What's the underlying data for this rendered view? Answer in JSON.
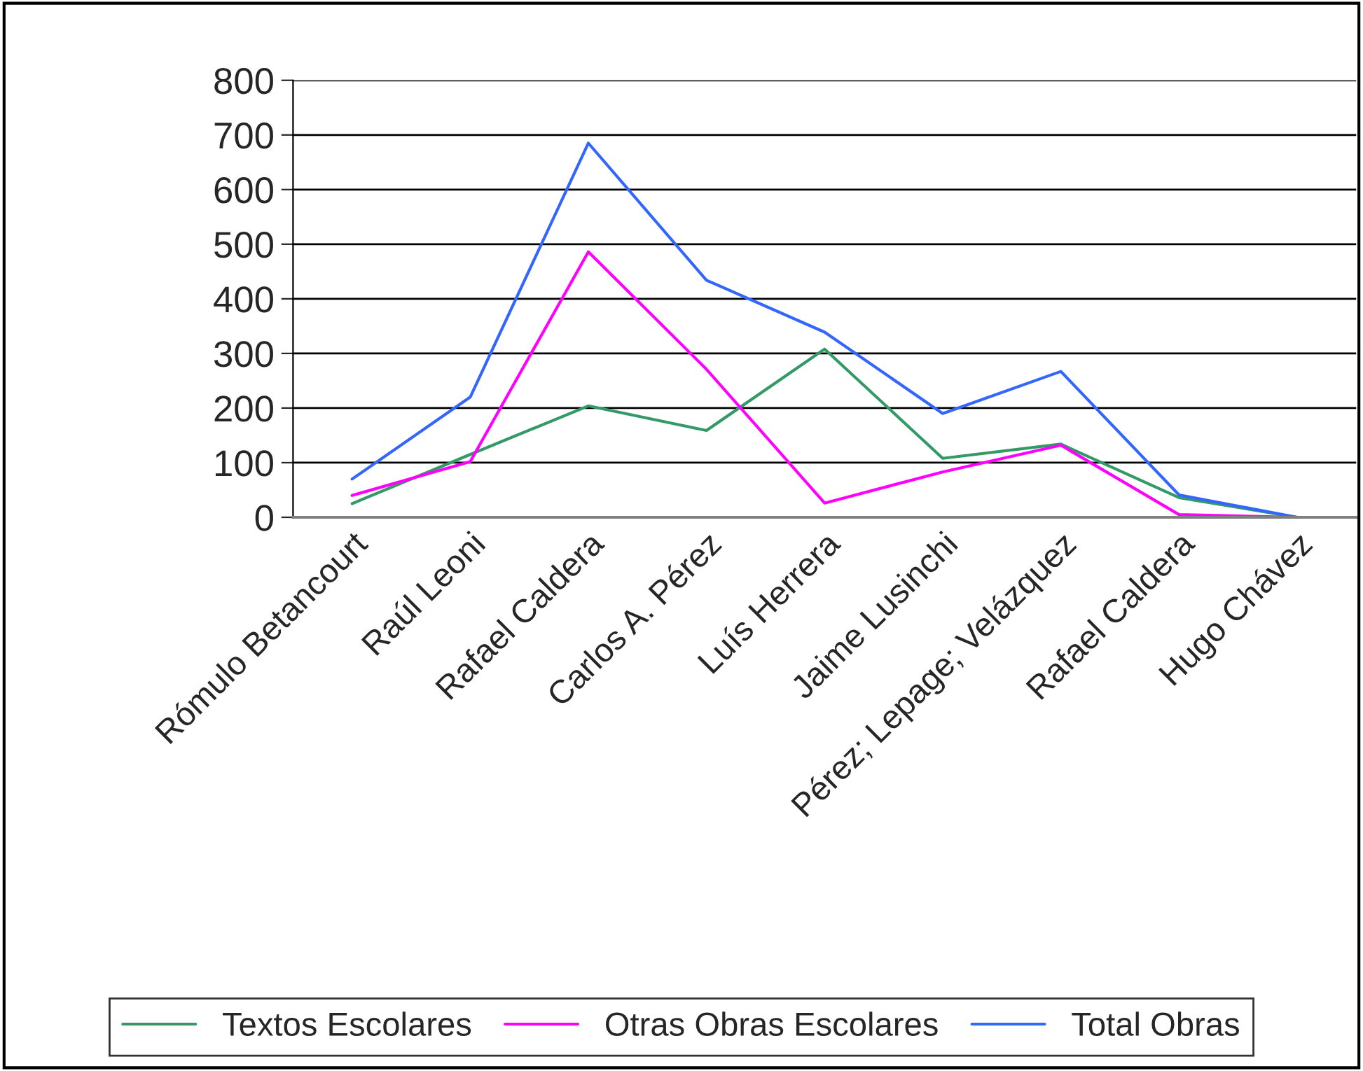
{
  "chart_data": {
    "type": "line",
    "categories": [
      "Rómulo Betancourt",
      "Raúl Leoni",
      "Rafael Caldera",
      "Carlos A. Pérez",
      "Luís Herrera",
      "Jaime Lusinchi",
      "Pérez; Lepage; Velázquez",
      "Rafael Caldera",
      "Hugo Chávez"
    ],
    "series": [
      {
        "name": "Textos Escolares",
        "color": "#339966",
        "values": [
          25,
          115,
          204,
          159,
          308,
          108,
          134,
          36,
          0
        ]
      },
      {
        "name": "Otras Obras Escolares",
        "color": "#ff00ff",
        "values": [
          40,
          102,
          486,
          271,
          26,
          83,
          132,
          5,
          0
        ]
      },
      {
        "name": "Total Obras",
        "color": "#3366ff",
        "values": [
          70,
          220,
          685,
          434,
          339,
          190,
          267,
          41,
          0
        ]
      }
    ],
    "ylim": [
      0,
      800
    ],
    "yticks": [
      0,
      100,
      200,
      300,
      400,
      500,
      600,
      700,
      800
    ],
    "grid": "y",
    "legend": "bottom",
    "marker": "none",
    "line_style": "solid"
  }
}
